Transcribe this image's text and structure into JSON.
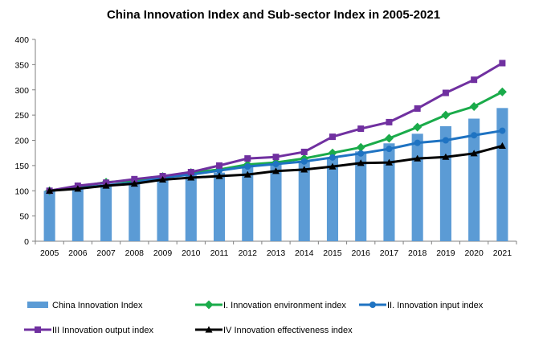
{
  "chart_data": {
    "type": "bar",
    "title": "China Innovation Index and Sub-sector Index in 2005-2021",
    "xlabel": "",
    "ylabel": "",
    "ylim": [
      0,
      400
    ],
    "yticks": [
      "0",
      "50",
      "100",
      "150",
      "200",
      "250",
      "300",
      "350",
      "400"
    ],
    "categories": [
      "2005",
      "2006",
      "2007",
      "2008",
      "2009",
      "2010",
      "2011",
      "2012",
      "2013",
      "2014",
      "2015",
      "2016",
      "2017",
      "2018",
      "2019",
      "2020",
      "2021"
    ],
    "grid": false,
    "legend_position": "bottom",
    "series": [
      {
        "name": "China Innovation Index",
        "type": "bar",
        "color": "#5b9bd5",
        "values": [
          100,
          104,
          110,
          116,
          126,
          131,
          136,
          148,
          155,
          158,
          166,
          178,
          194,
          213,
          228,
          243,
          264
        ]
      },
      {
        "name": "I. Innovation environment index",
        "type": "line",
        "marker": "diamond",
        "color": "#1aab4a",
        "values": [
          100,
          108,
          117,
          120,
          128,
          136,
          142,
          152,
          156,
          164,
          175,
          186,
          204,
          226,
          250,
          267,
          296
        ]
      },
      {
        "name": "II. Innovation input index",
        "type": "line",
        "marker": "circle",
        "color": "#1f73c2",
        "values": [
          100,
          105,
          111,
          116,
          126,
          132,
          140,
          148,
          153,
          158,
          166,
          174,
          183,
          195,
          200,
          210,
          219
        ]
      },
      {
        "name": "III Innovation output index",
        "type": "line",
        "marker": "square",
        "color": "#7030a0",
        "values": [
          100,
          110,
          116,
          123,
          129,
          137,
          150,
          164,
          167,
          177,
          207,
          223,
          236,
          263,
          294,
          320,
          353
        ]
      },
      {
        "name": "IV Innovation effectiveness index",
        "type": "line",
        "marker": "triangle",
        "color": "#000000",
        "values": [
          100,
          104,
          110,
          114,
          122,
          126,
          129,
          132,
          139,
          142,
          148,
          155,
          156,
          164,
          167,
          174,
          189
        ]
      }
    ]
  }
}
